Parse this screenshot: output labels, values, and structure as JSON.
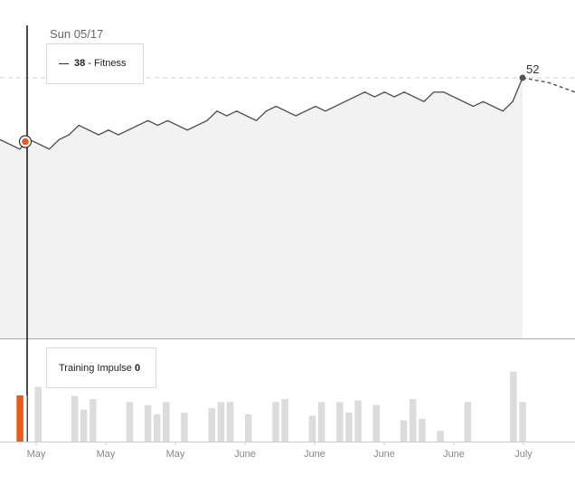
{
  "hover": {
    "date": "Sun 05/17",
    "fitness_value": "38",
    "fitness_label": "- Fitness",
    "impulse_label": "Training Impulse",
    "impulse_value": "0"
  },
  "end_label": "52",
  "colors": {
    "line": "#555555",
    "area": "#f2f2f2",
    "bars": "#dcdcdc",
    "highlight_bar": "#e85a17",
    "marker": "#e85a17",
    "cursor": "#111111"
  },
  "chart_data": [
    {
      "type": "area",
      "series": [
        {
          "name": "Fitness",
          "values": [
            39,
            38,
            37,
            39,
            38,
            37,
            39,
            40,
            42,
            41,
            40,
            41,
            40,
            41,
            42,
            43,
            42,
            43,
            42,
            41,
            42,
            43,
            45,
            44,
            45,
            44,
            43,
            45,
            46,
            45,
            44,
            45,
            46,
            45,
            46,
            47,
            48,
            49,
            48,
            49,
            48,
            49,
            48,
            47,
            49,
            49,
            48,
            47,
            46,
            47,
            46,
            45,
            47,
            52
          ],
          "forecast": [
            52,
            51,
            49
          ]
        }
      ],
      "reference_value": 52,
      "x_ticks": [
        "May",
        "May",
        "May",
        "June",
        "June",
        "June",
        "June",
        "July"
      ]
    },
    {
      "type": "bar",
      "series": [
        {
          "name": "Training Impulse",
          "values": [
            0,
            0,
            36,
            0,
            0,
            0,
            30,
            21,
            28,
            0,
            0,
            0,
            26,
            0,
            24,
            18,
            26,
            0,
            19,
            0,
            0,
            22,
            26,
            26,
            0,
            18,
            0,
            0,
            26,
            28,
            0,
            0,
            17,
            26,
            0,
            26,
            19,
            27,
            0,
            24,
            0,
            0,
            14,
            28,
            15,
            0,
            7,
            0,
            0,
            26,
            0,
            0,
            0,
            0,
            46,
            26
          ]
        }
      ],
      "highlight": 0
    }
  ]
}
